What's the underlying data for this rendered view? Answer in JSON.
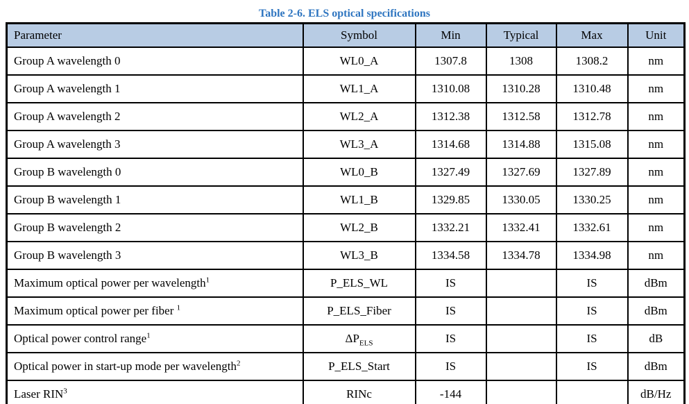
{
  "title": "Table 2-6. ELS optical specifications",
  "colors": {
    "title_blue": "#2e75c0",
    "header_bg": "#b8cce4",
    "border": "#000000"
  },
  "table": {
    "columns": [
      "Parameter",
      "Symbol",
      "Min",
      "Typical",
      "Max",
      "Unit"
    ],
    "rows": [
      {
        "param": "Group A wavelength 0",
        "sup": "",
        "symbol": "WL0_A",
        "sub": "",
        "min": "1307.8",
        "typical": "1308",
        "max": "1308.2",
        "unit": "nm"
      },
      {
        "param": "Group A wavelength 1",
        "sup": "",
        "symbol": "WL1_A",
        "sub": "",
        "min": "1310.08",
        "typical": "1310.28",
        "max": "1310.48",
        "unit": "nm"
      },
      {
        "param": "Group A wavelength 2",
        "sup": "",
        "symbol": "WL2_A",
        "sub": "",
        "min": "1312.38",
        "typical": "1312.58",
        "max": "1312.78",
        "unit": "nm"
      },
      {
        "param": "Group A wavelength 3",
        "sup": "",
        "symbol": "WL3_A",
        "sub": "",
        "min": "1314.68",
        "typical": "1314.88",
        "max": "1315.08",
        "unit": "nm"
      },
      {
        "param": "Group B wavelength 0",
        "sup": "",
        "symbol": "WL0_B",
        "sub": "",
        "min": "1327.49",
        "typical": "1327.69",
        "max": "1327.89",
        "unit": "nm"
      },
      {
        "param": "Group B wavelength 1",
        "sup": "",
        "symbol": "WL1_B",
        "sub": "",
        "min": "1329.85",
        "typical": "1330.05",
        "max": "1330.25",
        "unit": "nm"
      },
      {
        "param": "Group B wavelength 2",
        "sup": "",
        "symbol": "WL2_B",
        "sub": "",
        "min": "1332.21",
        "typical": "1332.41",
        "max": "1332.61",
        "unit": "nm"
      },
      {
        "param": "Group B wavelength 3",
        "sup": "",
        "symbol": "WL3_B",
        "sub": "",
        "min": "1334.58",
        "typical": "1334.78",
        "max": "1334.98",
        "unit": "nm"
      },
      {
        "param": "Maximum optical power per wavelength",
        "sup": "1",
        "symbol": "P_ELS_WL",
        "sub": "",
        "min": "IS",
        "typical": "",
        "max": "IS",
        "unit": "dBm"
      },
      {
        "param": "Maximum optical power per fiber ",
        "sup": "1",
        "symbol": "P_ELS_Fiber",
        "sub": "",
        "min": "IS",
        "typical": "",
        "max": "IS",
        "unit": "dBm"
      },
      {
        "param": "Optical power control range",
        "sup": "1",
        "symbol": "ΔP",
        "sub": "ELS",
        "min": "IS",
        "typical": "",
        "max": "IS",
        "unit": "dB"
      },
      {
        "param": "Optical power in start-up mode per wavelength",
        "sup": "2",
        "symbol": "P_ELS_Start",
        "sub": "",
        "min": "IS",
        "typical": "",
        "max": "IS",
        "unit": "dBm"
      },
      {
        "param": "Laser RIN",
        "sup": "3",
        "symbol": "RINc",
        "sub": "",
        "min": "-144",
        "typical": "",
        "max": "",
        "unit": "dB/Hz"
      }
    ]
  }
}
